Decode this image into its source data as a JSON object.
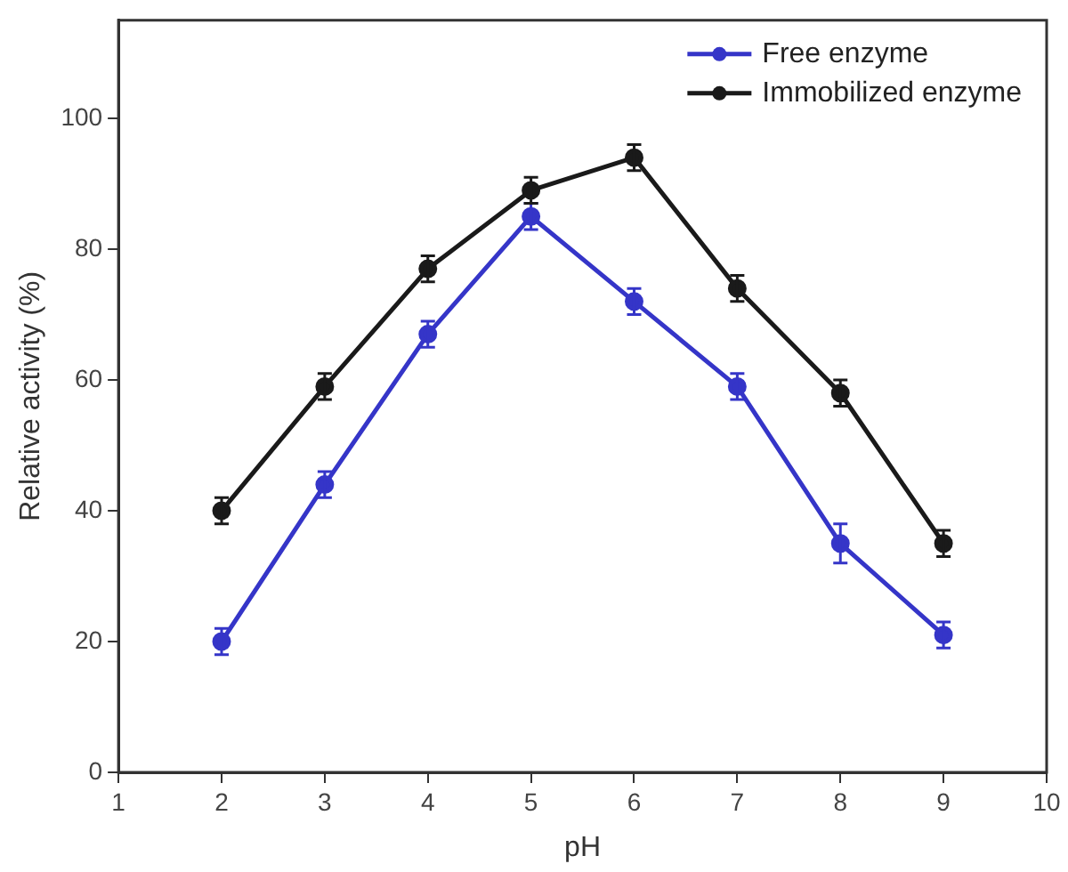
{
  "chart_data": {
    "type": "line",
    "xlabel": "pH",
    "ylabel": "Relative activity (%)",
    "x": [
      2,
      3,
      4,
      5,
      6,
      7,
      8,
      9
    ],
    "series": [
      {
        "name": "Free enzyme",
        "color": "#3535c8",
        "values": [
          20,
          44,
          67,
          85,
          72,
          59,
          35,
          21
        ],
        "errors": [
          2,
          2,
          2,
          2,
          2,
          2,
          3,
          2
        ]
      },
      {
        "name": "Immobilized enzyme",
        "color": "#1a1a1a",
        "values": [
          40,
          59,
          77,
          89,
          94,
          74,
          58,
          35
        ],
        "errors": [
          2,
          2,
          2,
          2,
          2,
          2,
          2,
          2
        ]
      }
    ],
    "xlim": [
      1,
      10
    ],
    "xticks": [
      1,
      2,
      3,
      4,
      5,
      6,
      7,
      8,
      9,
      10
    ],
    "ylim": [
      0,
      115
    ],
    "yticks": [
      0,
      20,
      40,
      60,
      80,
      100
    ],
    "grid": false,
    "legend": "top right",
    "marker": "circle",
    "line_style": "solid"
  }
}
